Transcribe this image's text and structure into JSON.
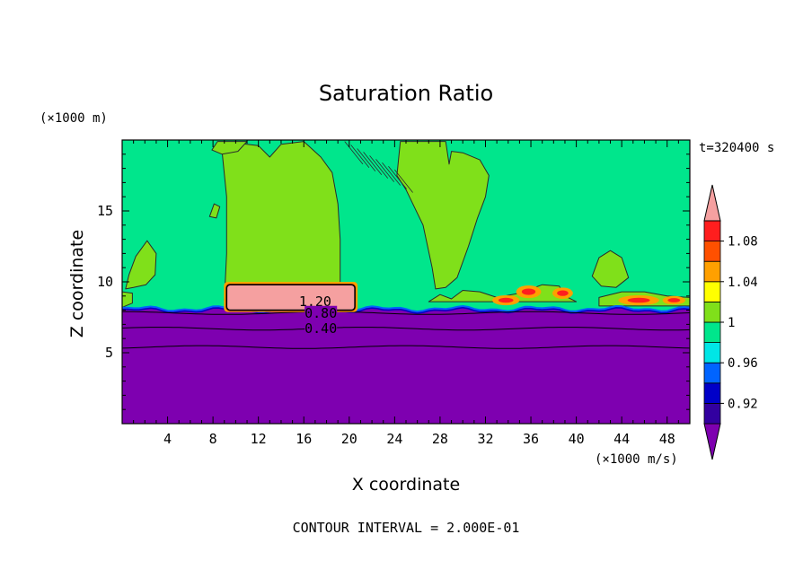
{
  "chart_data": {
    "type": "heatmap",
    "title": "Saturation Ratio",
    "time_label": "t=320400 s",
    "xlabel": "X coordinate",
    "ylabel": "Z coordinate",
    "x_unit": "(×1000 m/s)",
    "y_unit": "(×1000 m)",
    "xlim": [
      0,
      50
    ],
    "ylim": [
      0,
      20
    ],
    "x_ticks": [
      4,
      8,
      12,
      16,
      20,
      24,
      28,
      32,
      36,
      40,
      44,
      48
    ],
    "y_ticks": [
      5,
      10,
      15
    ],
    "footer": "CONTOUR INTERVAL = 2.000E-01",
    "contour_labels": [
      {
        "text": "1.20",
        "x": 17.0,
        "y": 8.6
      },
      {
        "text": "0.80",
        "x": 17.5,
        "y": 7.8
      },
      {
        "text": "0.40",
        "x": 17.5,
        "y": 6.7
      }
    ],
    "colorbar": {
      "levels": [
        0.92,
        0.94,
        0.96,
        0.98,
        1.0,
        1.02,
        1.04,
        1.06,
        1.08,
        1.1
      ],
      "tick_labels": [
        "1.08",
        "1.04",
        "1",
        "0.96",
        "0.92"
      ],
      "colors": [
        "#7e00b0",
        "#3200a0",
        "#0000c8",
        "#0064ff",
        "#00e6e6",
        "#00e68c",
        "#80e01a",
        "#ffff00",
        "#ffa000",
        "#ff5000",
        "#ff1e1e",
        "#f5a0a0"
      ]
    },
    "regions": {
      "dry_color": "#7e00b0",
      "ambient_color": "#00e68c",
      "supersat_color": "#80e01a",
      "cloud_color": "#f5a0a0",
      "inversion_top_z": 8.1,
      "cloud_block": {
        "x": [
          9.2,
          20.5
        ],
        "z": [
          8.0,
          9.8
        ]
      }
    }
  }
}
